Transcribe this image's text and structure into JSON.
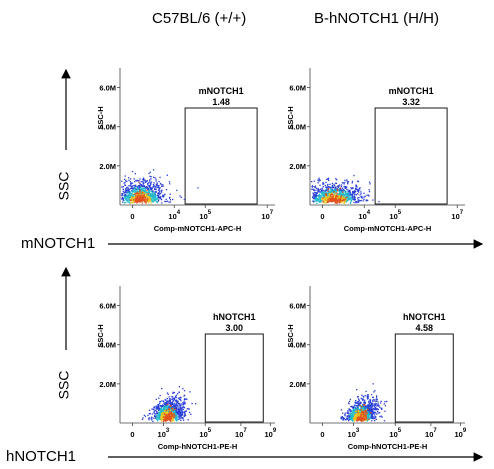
{
  "column_titles": [
    "C57BL/6 (+/+)",
    "B-hNOTCH1 (H/H)"
  ],
  "row_labels": {
    "top_x": "mNOTCH1",
    "bottom_x": "hNOTCH1",
    "y": "SSC"
  },
  "colors": {
    "gate": "#000000",
    "dots_low": "#2a3fd8",
    "dots_mid": "#22bbcc",
    "dots_high": "#e8c21e",
    "dots_peak": "#e2521e"
  },
  "chart_data": [
    {
      "type": "scatter",
      "row": 0,
      "col": 0,
      "gate_name": "mNOTCH1",
      "gate_value": "1.48",
      "xlabel": "Comp-mNOTCH1-APC-H",
      "ylabel": "SSC-H",
      "x_ticks": [
        "0",
        "10^4",
        "10^5",
        "10^7"
      ],
      "y_ticks": [
        "2.0M",
        "4.0M",
        "6.0M"
      ],
      "ylim": [
        0,
        7.0
      ],
      "population": {
        "center_x": 0.13,
        "center_y": 0.55,
        "spread_x": 0.08,
        "spread_y": 0.5,
        "points": 900,
        "seed": 11
      }
    },
    {
      "type": "scatter",
      "row": 0,
      "col": 1,
      "gate_name": "mNOTCH1",
      "gate_value": "3.32",
      "xlabel": "Comp-mNOTCH1-APC-H",
      "ylabel": "SSC-H",
      "x_ticks": [
        "0",
        "10^4",
        "10^5",
        "10^7"
      ],
      "y_ticks": [
        "2.0M",
        "4.0M",
        "6.0M"
      ],
      "ylim": [
        0,
        7.0
      ],
      "population": {
        "center_x": 0.15,
        "center_y": 0.5,
        "spread_x": 0.09,
        "spread_y": 0.45,
        "points": 900,
        "seed": 23
      }
    },
    {
      "type": "scatter",
      "row": 1,
      "col": 0,
      "gate_name": "hNOTCH1",
      "gate_value": "3.00",
      "xlabel": "Comp-hNOTCH1-PE-H",
      "ylabel": "SSC-H",
      "x_ticks": [
        "0",
        "10^3",
        "10^5",
        "10^7",
        "10^9"
      ],
      "y_ticks": [
        "2.0M",
        "4.0M",
        "6.0M"
      ],
      "ylim": [
        0,
        7.0
      ],
      "population": {
        "center_x": 0.3,
        "center_y": 0.4,
        "spread_x": 0.05,
        "spread_y": 0.5,
        "points": 900,
        "seed": 37
      }
    },
    {
      "type": "scatter",
      "row": 1,
      "col": 1,
      "gate_name": "hNOTCH1",
      "gate_value": "4.58",
      "xlabel": "Comp-hNOTCH1-PE-H",
      "ylabel": "SSC-H",
      "x_ticks": [
        "0",
        "10^3",
        "10^5",
        "10^7",
        "10^9"
      ],
      "y_ticks": [
        "2.0M",
        "4.0M",
        "6.0M"
      ],
      "ylim": [
        0,
        7.0
      ],
      "population": {
        "center_x": 0.32,
        "center_y": 0.4,
        "spread_x": 0.05,
        "spread_y": 0.5,
        "points": 900,
        "seed": 53
      }
    }
  ]
}
